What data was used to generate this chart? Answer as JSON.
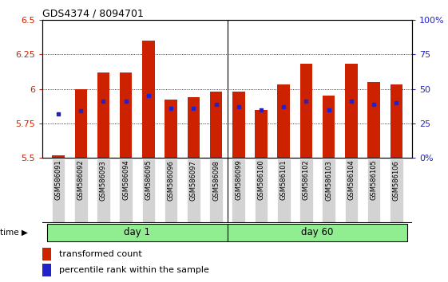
{
  "title": "GDS4374 / 8094701",
  "samples": [
    "GSM586091",
    "GSM586092",
    "GSM586093",
    "GSM586094",
    "GSM586095",
    "GSM586096",
    "GSM586097",
    "GSM586098",
    "GSM586099",
    "GSM586100",
    "GSM586101",
    "GSM586102",
    "GSM586103",
    "GSM586104",
    "GSM586105",
    "GSM586106"
  ],
  "red_values": [
    5.52,
    6.0,
    6.12,
    6.12,
    6.35,
    5.92,
    5.94,
    5.98,
    5.98,
    5.85,
    6.03,
    6.18,
    5.95,
    6.18,
    6.05,
    6.03
  ],
  "blue_values": [
    5.82,
    5.84,
    5.91,
    5.91,
    5.95,
    5.86,
    5.86,
    5.89,
    5.87,
    5.85,
    5.87,
    5.91,
    5.85,
    5.91,
    5.89,
    5.9
  ],
  "ylim_left": [
    5.5,
    6.5
  ],
  "ylim_right": [
    0,
    100
  ],
  "yticks_left": [
    5.5,
    5.75,
    6.0,
    6.25,
    6.5
  ],
  "ytick_labels_left": [
    "5.5",
    "5.75",
    "6",
    "6.25",
    "6.5"
  ],
  "yticks_right": [
    0,
    25,
    50,
    75,
    100
  ],
  "ytick_labels_right": [
    "0%",
    "25",
    "50",
    "75",
    "100%"
  ],
  "bar_color": "#cc2200",
  "blue_color": "#2222cc",
  "base": 5.5,
  "groups": [
    {
      "label": "day 1",
      "start": 0,
      "end": 8,
      "color": "#90ee90"
    },
    {
      "label": "day 60",
      "start": 8,
      "end": 16,
      "color": "#90ee90"
    }
  ],
  "group_separator": 8,
  "background_color": "#ffffff",
  "bar_width": 0.55,
  "time_label": "time",
  "legend_red": "transformed count",
  "legend_blue": "percentile rank within the sample"
}
